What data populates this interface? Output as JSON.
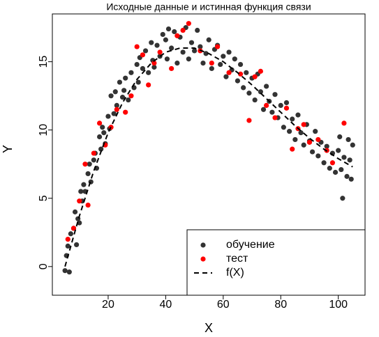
{
  "chart_data": {
    "type": "scatter",
    "title": "Исходные данные и истинная функция связи",
    "xlabel": "X",
    "ylabel": "Y",
    "xlim": [
      0.6,
      109.3
    ],
    "ylim": [
      -2.1,
      18.5
    ],
    "xticks": [
      20,
      40,
      60,
      80,
      100
    ],
    "yticks": [
      0,
      5,
      10,
      15
    ],
    "legend": "bottomright",
    "series": [
      {
        "name": "обучение",
        "color": "#333333",
        "x": [
          5,
          5.5,
          6,
          6.5,
          7,
          8,
          8.5,
          9,
          9.5,
          10,
          10.5,
          11,
          11.5,
          12,
          13,
          13.5,
          14,
          15,
          15.5,
          16,
          17,
          17.5,
          18,
          18.5,
          19,
          20,
          20.5,
          21,
          22,
          22.5,
          23,
          24,
          25,
          25.5,
          26,
          27,
          28,
          29,
          30,
          30.5,
          31,
          32,
          33,
          34,
          35,
          35.5,
          36,
          37,
          38,
          39,
          40,
          40.5,
          41,
          42,
          43,
          44,
          45,
          46,
          47,
          48,
          49,
          50,
          51,
          52,
          53,
          54,
          55,
          56,
          57,
          58,
          59,
          60,
          61,
          62,
          63,
          64,
          65,
          66,
          67,
          68,
          69,
          70,
          71,
          72,
          73,
          74,
          75,
          76,
          77,
          78,
          79,
          80,
          81,
          82,
          83,
          84,
          85,
          86,
          87,
          88,
          89,
          90,
          91,
          92,
          93,
          94,
          95,
          96,
          97,
          98,
          99,
          100,
          101,
          101.5,
          102,
          103,
          104,
          104.5,
          105,
          103.5,
          100.5
        ],
        "values": [
          -0.3,
          0.8,
          1.5,
          -0.4,
          2.4,
          2.8,
          4,
          1.6,
          3.5,
          3.2,
          5.5,
          4.8,
          6,
          5.5,
          6.8,
          7.5,
          6.2,
          7.8,
          8.3,
          7.2,
          9.5,
          8.6,
          10.2,
          9.8,
          9,
          11,
          10.1,
          12.5,
          11.2,
          12.8,
          11.8,
          13.5,
          12.4,
          12.9,
          13.8,
          12.2,
          14.2,
          13.1,
          14.8,
          13.5,
          15.3,
          14.5,
          15.8,
          14.2,
          16.4,
          15.1,
          14.6,
          16.2,
          15.4,
          17,
          16.6,
          15.2,
          17.4,
          16,
          17.2,
          14.9,
          16.8,
          15.7,
          17.5,
          15.2,
          16.4,
          15.8,
          17.3,
          16.1,
          14.9,
          15.6,
          16.6,
          14.5,
          15.9,
          16.2,
          14.8,
          15.4,
          13.9,
          15.7,
          14.4,
          15.2,
          13.6,
          14.8,
          13.1,
          14.2,
          12.7,
          13.8,
          12.2,
          14.1,
          12.8,
          11.5,
          13.2,
          12.1,
          11.3,
          12.6,
          10.9,
          11.8,
          10.2,
          12,
          9.9,
          10.8,
          9.3,
          11.1,
          9.8,
          8.9,
          10.4,
          9.2,
          8.4,
          9.9,
          8.1,
          9.1,
          7.6,
          8.8,
          7.2,
          8.3,
          6.9,
          8.5,
          7.1,
          5,
          8,
          6.6,
          7.8,
          6.4,
          8.9,
          9.3,
          9.5
        ]
      },
      {
        "name": "тест",
        "color": "#ff0000",
        "x": [
          6,
          8,
          10,
          12,
          13,
          15,
          17,
          19,
          21,
          23,
          26,
          28,
          30,
          32,
          34,
          36,
          38,
          42,
          44,
          46,
          48,
          52,
          56,
          58,
          62,
          66,
          69,
          71,
          73,
          75,
          78,
          82,
          84,
          86,
          88,
          90,
          93,
          96,
          98,
          102
        ],
        "values": [
          2,
          2.8,
          4.8,
          7.5,
          4.5,
          8.3,
          10.5,
          8.9,
          10.2,
          11.5,
          11.3,
          12.5,
          16.1,
          15.5,
          13.3,
          14.9,
          15.7,
          14.5,
          16.9,
          17.3,
          17.8,
          15.8,
          14.9,
          16.1,
          14.2,
          14.1,
          10.7,
          13.9,
          14.3,
          11.8,
          10.9,
          11.6,
          8.6,
          10.1,
          10.4,
          9.1,
          9.3,
          8.5,
          7.6,
          10.5
        ]
      },
      {
        "name": "f(X)",
        "color": "#000000",
        "line_style": "dashed",
        "x": [
          5,
          10,
          15,
          20,
          25,
          30,
          35,
          40,
          45,
          50,
          55,
          60,
          65,
          70,
          75,
          80,
          85,
          90,
          95,
          100,
          105
        ],
        "values": [
          0,
          3.7,
          7,
          9.8,
          12,
          13.7,
          14.9,
          15.7,
          16,
          16,
          15.6,
          15,
          14.2,
          13.3,
          12.3,
          11.3,
          10.3,
          9.4,
          8.6,
          7.9,
          7.3
        ]
      }
    ]
  }
}
